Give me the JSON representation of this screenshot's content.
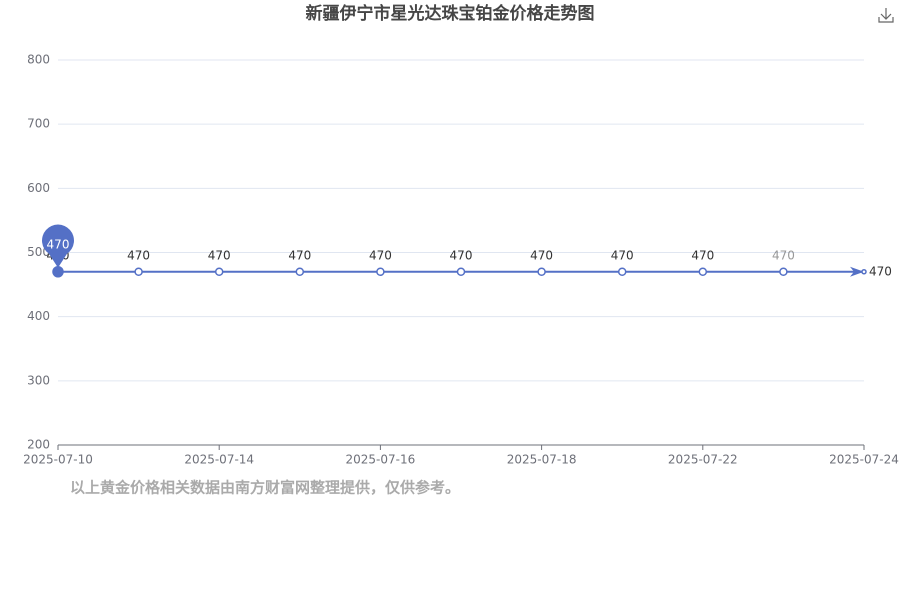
{
  "chart_data": {
    "type": "line",
    "title": "新疆伊宁市星光达珠宝铂金价格走势图",
    "note": "以上黄金价格相关数据由南方财富网整理提供，仅供参考。",
    "categories": [
      "2025-07-10",
      null,
      "2025-07-14",
      null,
      "2025-07-16",
      null,
      "2025-07-18",
      null,
      "2025-07-22",
      null,
      "2025-07-24"
    ],
    "values": [
      470,
      470,
      470,
      470,
      470,
      470,
      470,
      470,
      470,
      470,
      470
    ],
    "color": "#5470c6",
    "ylim": [
      200,
      800
    ],
    "yticks": [
      200,
      300,
      400,
      500,
      600,
      700,
      800
    ],
    "grid": true
  }
}
